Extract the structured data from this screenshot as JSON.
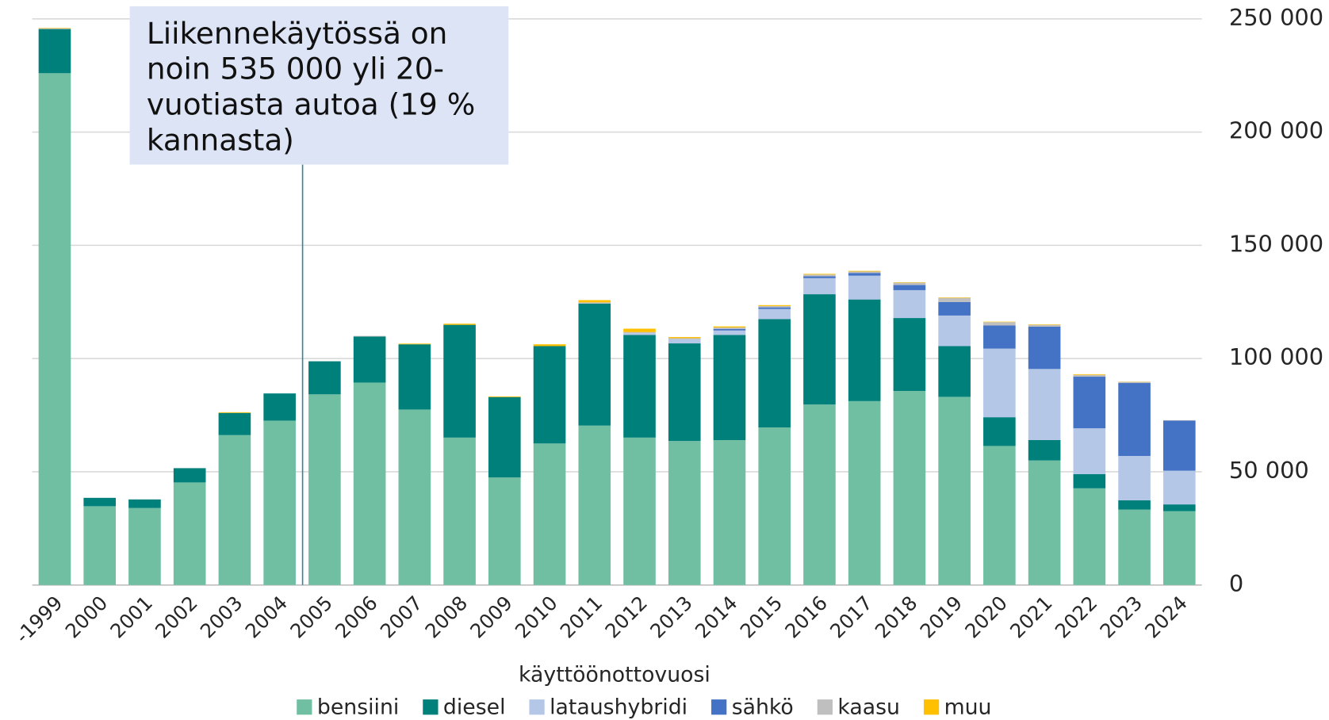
{
  "chart_data": {
    "type": "stacked_bar",
    "annotation": "Liikennekäytössä on noin 535 000 yli 20-vuotiasta autoa (19 % kannasta)",
    "x_label": "käyttöönottovuosi",
    "categories": [
      "-1999",
      "2000",
      "2001",
      "2002",
      "2003",
      "2004",
      "2005",
      "2006",
      "2007",
      "2008",
      "2009",
      "2010",
      "2011",
      "2012",
      "2013",
      "2014",
      "2015",
      "2016",
      "2017",
      "2018",
      "2019",
      "2020",
      "2021",
      "2022",
      "2023",
      "2024"
    ],
    "series": [
      {
        "name": "bensiini",
        "color": "#70bfa2",
        "values": [
          226000,
          34800,
          34000,
          45300,
          66200,
          72600,
          84200,
          89400,
          77500,
          65100,
          47500,
          62500,
          70400,
          65100,
          63600,
          64000,
          69600,
          79700,
          81200,
          85700,
          83100,
          61400,
          55000,
          42700,
          33300,
          32600
        ]
      },
      {
        "name": "diesel",
        "color": "#00807a",
        "values": [
          19500,
          3700,
          3800,
          6300,
          9800,
          12000,
          14600,
          20300,
          28800,
          49800,
          35500,
          43000,
          53900,
          45300,
          43100,
          46400,
          47800,
          48700,
          44900,
          32200,
          22400,
          12700,
          9000,
          6300,
          4100,
          3000
        ]
      },
      {
        "name": "lataushybridi",
        "color": "#b4c7e7",
        "values": [
          0,
          0,
          0,
          0,
          0,
          0,
          0,
          0,
          0,
          0,
          0,
          0,
          0,
          800,
          1800,
          2000,
          4500,
          7100,
          10500,
          12300,
          13500,
          30300,
          31400,
          20200,
          19600,
          14900
        ]
      },
      {
        "name": "sähkö",
        "color": "#4472c4",
        "values": [
          0,
          0,
          0,
          0,
          0,
          0,
          0,
          0,
          0,
          0,
          0,
          0,
          0,
          0,
          0,
          700,
          700,
          800,
          1200,
          2300,
          6000,
          10200,
          18700,
          22800,
          32200,
          22100
        ]
      },
      {
        "name": "kaasu",
        "color": "#bfbfbf",
        "values": [
          300,
          0,
          0,
          0,
          0,
          0,
          0,
          300,
          0,
          0,
          0,
          0,
          500,
          500,
          500,
          600,
          600,
          800,
          600,
          1000,
          1800,
          1500,
          800,
          800,
          500,
          200
        ]
      },
      {
        "name": "muu",
        "color": "#ffc000",
        "values": [
          200,
          0,
          0,
          0,
          300,
          0,
          0,
          0,
          300,
          500,
          300,
          800,
          1000,
          1500,
          500,
          500,
          400,
          300,
          300,
          200,
          200,
          200,
          200,
          300,
          100,
          0
        ]
      }
    ],
    "ylim": [
      0,
      250000
    ],
    "yticks": [
      0,
      {
        "value": 50000,
        "label": "50 000"
      },
      {
        "value": 100000,
        "label": "100 000"
      },
      {
        "value": 150000,
        "label": "150 000"
      },
      {
        "value": 200000,
        "label": "200 000"
      },
      {
        "value": 250000,
        "label": "250 000"
      }
    ],
    "grid": true
  }
}
